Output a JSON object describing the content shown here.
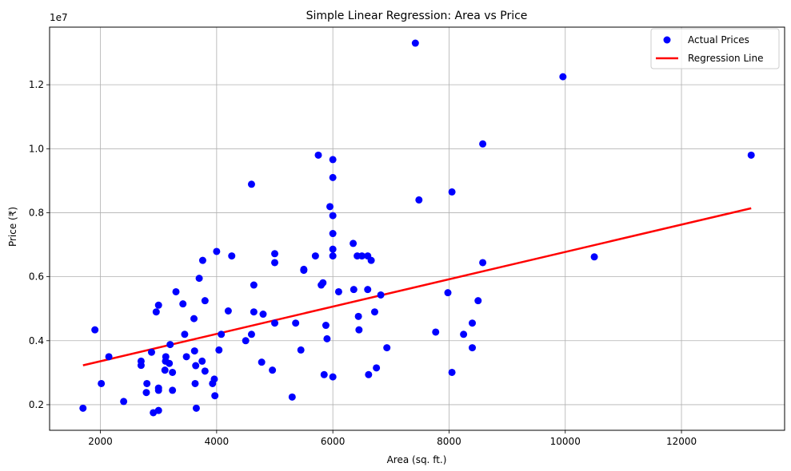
{
  "chart_data": {
    "type": "scatter",
    "title": "Simple Linear Regression: Area vs Price",
    "xlabel": "Area (sq. ft.)",
    "ylabel": "Price (₹)",
    "y_offset_label": "1e7",
    "xlim": [
      1125,
      13775
    ],
    "ylim": [
      1200000,
      13800000
    ],
    "x_ticks": [
      2000,
      4000,
      6000,
      8000,
      10000,
      12000
    ],
    "y_ticks": [
      2000000,
      4000000,
      6000000,
      8000000,
      10000000,
      12000000
    ],
    "x_tick_labels": [
      "2000",
      "4000",
      "6000",
      "8000",
      "10000",
      "12000"
    ],
    "y_tick_labels": [
      "0.2",
      "0.4",
      "0.6",
      "0.8",
      "1.0",
      "1.2"
    ],
    "grid": true,
    "legend_position": "top-right",
    "series": [
      {
        "name": "Actual Prices",
        "kind": "scatter",
        "color": "#0000ff",
        "points": [
          [
            1700,
            1890000
          ],
          [
            1905,
            4340000
          ],
          [
            2015,
            2660000
          ],
          [
            2145,
            3500000
          ],
          [
            2400,
            2100000
          ],
          [
            2700,
            3360000
          ],
          [
            2700,
            3230000
          ],
          [
            2790,
            2380000
          ],
          [
            2800,
            2660000
          ],
          [
            2880,
            3640000
          ],
          [
            2910,
            1750000
          ],
          [
            2960,
            4900000
          ],
          [
            3000,
            5110000
          ],
          [
            3000,
            2520000
          ],
          [
            3000,
            2450000
          ],
          [
            3000,
            1820000
          ],
          [
            3110,
            3080000
          ],
          [
            3120,
            3360000
          ],
          [
            3125,
            3500000
          ],
          [
            3185,
            3290000
          ],
          [
            3200,
            3880000
          ],
          [
            3240,
            2450000
          ],
          [
            3240,
            3010000
          ],
          [
            3300,
            5530000
          ],
          [
            3420,
            5150000
          ],
          [
            3450,
            4200000
          ],
          [
            3480,
            3500000
          ],
          [
            3610,
            4690000
          ],
          [
            3620,
            3680000
          ],
          [
            3630,
            2660000
          ],
          [
            3640,
            3220000
          ],
          [
            3650,
            1890000
          ],
          [
            3700,
            5950000
          ],
          [
            3750,
            3360000
          ],
          [
            3760,
            6510000
          ],
          [
            3800,
            5250000
          ],
          [
            3800,
            3050000
          ],
          [
            3930,
            2660000
          ],
          [
            3960,
            2800000
          ],
          [
            3970,
            2280000
          ],
          [
            4000,
            6790000
          ],
          [
            4040,
            3710000
          ],
          [
            4080,
            4200000
          ],
          [
            4200,
            4930000
          ],
          [
            4260,
            6650000
          ],
          [
            4500,
            4000000
          ],
          [
            4600,
            8890000
          ],
          [
            4600,
            4200000
          ],
          [
            4640,
            5740000
          ],
          [
            4640,
            4900000
          ],
          [
            4775,
            3330000
          ],
          [
            4800,
            4830000
          ],
          [
            4960,
            3080000
          ],
          [
            5000,
            6440000
          ],
          [
            5000,
            6720000
          ],
          [
            5000,
            4550000
          ],
          [
            5300,
            2240000
          ],
          [
            5360,
            4550000
          ],
          [
            5450,
            3710000
          ],
          [
            5500,
            6230000
          ],
          [
            5500,
            6200000
          ],
          [
            5700,
            6650000
          ],
          [
            5750,
            9800000
          ],
          [
            5800,
            5740000
          ],
          [
            5830,
            5810000
          ],
          [
            5850,
            2940000
          ],
          [
            5880,
            4480000
          ],
          [
            5900,
            4060000
          ],
          [
            5950,
            8190000
          ],
          [
            6000,
            9660000
          ],
          [
            6000,
            9100000
          ],
          [
            6000,
            7910000
          ],
          [
            6000,
            7350000
          ],
          [
            6000,
            6860000
          ],
          [
            6000,
            6650000
          ],
          [
            6000,
            2870000
          ],
          [
            6100,
            5530000
          ],
          [
            6350,
            7040000
          ],
          [
            6360,
            5600000
          ],
          [
            6420,
            6650000
          ],
          [
            6440,
            4760000
          ],
          [
            6450,
            4340000
          ],
          [
            6500,
            6650000
          ],
          [
            6600,
            6650000
          ],
          [
            6600,
            5600000
          ],
          [
            6615,
            2940000
          ],
          [
            6660,
            6510000
          ],
          [
            6720,
            4900000
          ],
          [
            6750,
            3150000
          ],
          [
            6825,
            5430000
          ],
          [
            6930,
            3780000
          ],
          [
            7420,
            13300000
          ],
          [
            7482,
            8400000
          ],
          [
            7770,
            4270000
          ],
          [
            7980,
            5500000
          ],
          [
            8050,
            8650000
          ],
          [
            8050,
            3010000
          ],
          [
            8250,
            4200000
          ],
          [
            8400,
            3780000
          ],
          [
            8400,
            4550000
          ],
          [
            8500,
            5250000
          ],
          [
            8580,
            10150000
          ],
          [
            8580,
            6440000
          ],
          [
            9960,
            12250000
          ],
          [
            10500,
            6620000
          ],
          [
            13200,
            9800000
          ]
        ]
      },
      {
        "name": "Regression Line",
        "kind": "line",
        "color": "#ff0000",
        "x": [
          1700,
          13200
        ],
        "y": [
          3230000,
          8140000
        ]
      }
    ]
  }
}
